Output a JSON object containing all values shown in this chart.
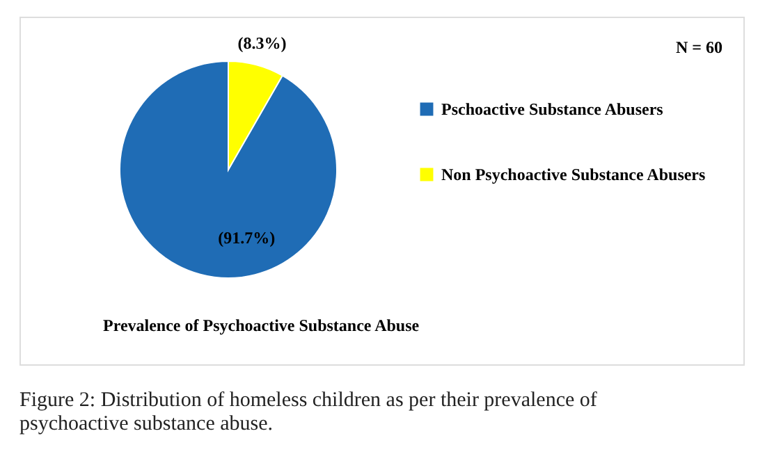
{
  "chart_data": {
    "type": "pie",
    "title": "Prevalence of Psychoactive Substance Abuse",
    "categories": [
      "Pschoactive Substance Abusers",
      "Non Psychoactive Substance Abusers"
    ],
    "values": [
      91.7,
      8.3
    ],
    "colors": [
      "#1f6cb5",
      "#ffff00"
    ],
    "value_labels": [
      "(91.7%)",
      "(8.3%)"
    ],
    "legend": "right",
    "annotations": [
      "N = 60",
      "Figure 2: Distribution of homeless children as per their prevalence of psychoactive substance abuse."
    ]
  }
}
